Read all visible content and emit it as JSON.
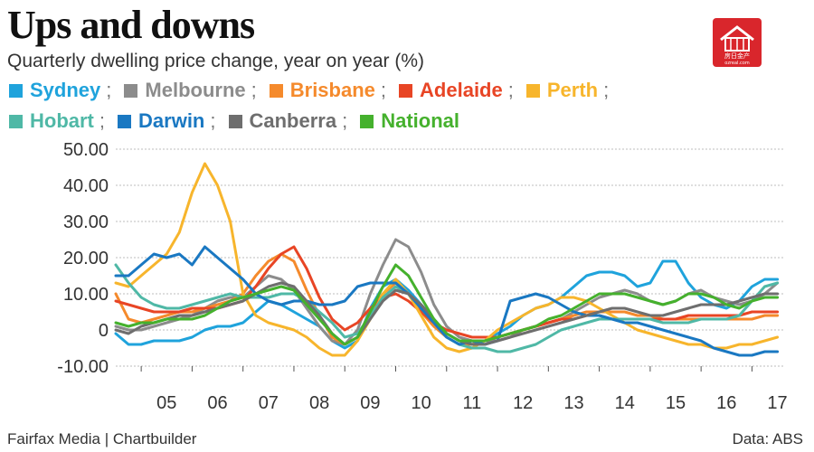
{
  "title": "Ups and downs",
  "subtitle": "Quarterly dwelling price change, year on year (%)",
  "footer": {
    "source": "Fairfax Media | Chartbuilder",
    "data": "Data: ABS"
  },
  "logo": {
    "text": "房日金产",
    "url_text": "ozreal.com",
    "color": "#d9262c"
  },
  "chart_data": {
    "type": "line",
    "title": "Ups and downs",
    "subtitle": "Quarterly dwelling price change, year on year (%)",
    "xlabel": "",
    "ylabel": "",
    "ylim": [
      -10,
      50
    ],
    "yticks": [
      "50.00",
      "40.00",
      "30.00",
      "20.00",
      "10.00",
      "0",
      "-10.00"
    ],
    "ytick_values": [
      50,
      40,
      30,
      20,
      10,
      0,
      -10
    ],
    "xticks": [
      "05",
      "06",
      "07",
      "08",
      "09",
      "10",
      "11",
      "12",
      "13",
      "14",
      "15",
      "16",
      "17"
    ],
    "xlim": [
      2004.5,
      2017.65
    ],
    "grid": true,
    "legend_position": "top",
    "series": [
      {
        "name": "Sydney",
        "color": "#1fa3dc",
        "x": [
          2004.5,
          2004.75,
          2005.0,
          2005.25,
          2005.5,
          2005.75,
          2006.0,
          2006.25,
          2006.5,
          2006.75,
          2007.0,
          2007.25,
          2007.5,
          2007.75,
          2008.0,
          2008.25,
          2008.5,
          2008.75,
          2009.0,
          2009.25,
          2009.5,
          2009.75,
          2010.0,
          2010.25,
          2010.5,
          2010.75,
          2011.0,
          2011.25,
          2011.5,
          2011.75,
          2012.0,
          2012.25,
          2012.5,
          2012.75,
          2013.0,
          2013.25,
          2013.5,
          2013.75,
          2014.0,
          2014.25,
          2014.5,
          2014.75,
          2015.0,
          2015.25,
          2015.5,
          2015.75,
          2016.0,
          2016.25,
          2016.5,
          2016.75,
          2017.0,
          2017.25,
          2017.5
        ],
        "y": [
          -1,
          -4,
          -4,
          -3,
          -3,
          -3,
          -2,
          0,
          1,
          1,
          2,
          5,
          8,
          7,
          5,
          3,
          1,
          -3,
          -5,
          -3,
          6,
          12,
          14,
          11,
          7,
          3,
          -1,
          -3,
          -4,
          -3,
          -1,
          1,
          4,
          6,
          7,
          9,
          12,
          15,
          16,
          16,
          15,
          12,
          13,
          19,
          19,
          13,
          9,
          7,
          6,
          8,
          12,
          14,
          14
        ]
      },
      {
        "name": "Melbourne",
        "color": "#8c8c8c",
        "x": [
          2004.5,
          2004.75,
          2005.0,
          2005.25,
          2005.5,
          2005.75,
          2006.0,
          2006.25,
          2006.5,
          2006.75,
          2007.0,
          2007.25,
          2007.5,
          2007.75,
          2008.0,
          2008.25,
          2008.5,
          2008.75,
          2009.0,
          2009.25,
          2009.5,
          2009.75,
          2010.0,
          2010.25,
          2010.5,
          2010.75,
          2011.0,
          2011.25,
          2011.5,
          2011.75,
          2012.0,
          2012.25,
          2012.5,
          2012.75,
          2013.0,
          2013.25,
          2013.5,
          2013.75,
          2014.0,
          2014.25,
          2014.5,
          2014.75,
          2015.0,
          2015.25,
          2015.5,
          2015.75,
          2016.0,
          2016.25,
          2016.5,
          2016.75,
          2017.0,
          2017.25,
          2017.5
        ],
        "y": [
          1,
          0,
          0,
          1,
          2,
          3,
          4,
          6,
          8,
          9,
          9,
          12,
          15,
          14,
          11,
          6,
          1,
          -3,
          -4,
          0,
          10,
          18,
          25,
          23,
          16,
          7,
          1,
          -2,
          -3,
          -3,
          -3,
          -2,
          0,
          1,
          2,
          3,
          5,
          7,
          9,
          10,
          11,
          10,
          8,
          7,
          8,
          10,
          11,
          9,
          8,
          7,
          8,
          10,
          13
        ]
      },
      {
        "name": "Brisbane",
        "color": "#f58a2c",
        "x": [
          2004.5,
          2004.75,
          2005.0,
          2005.25,
          2005.5,
          2005.75,
          2006.0,
          2006.25,
          2006.5,
          2006.75,
          2007.0,
          2007.25,
          2007.5,
          2007.75,
          2008.0,
          2008.25,
          2008.5,
          2008.75,
          2009.0,
          2009.25,
          2009.5,
          2009.75,
          2010.0,
          2010.25,
          2010.5,
          2010.75,
          2011.0,
          2011.25,
          2011.5,
          2011.75,
          2012.0,
          2012.25,
          2012.5,
          2012.75,
          2013.0,
          2013.25,
          2013.5,
          2013.75,
          2014.0,
          2014.25,
          2014.5,
          2014.75,
          2015.0,
          2015.25,
          2015.5,
          2015.75,
          2016.0,
          2016.25,
          2016.5,
          2016.75,
          2017.0,
          2017.25,
          2017.5
        ],
        "y": [
          10,
          3,
          2,
          3,
          4,
          5,
          5,
          6,
          7,
          8,
          10,
          15,
          19,
          21,
          19,
          11,
          4,
          -2,
          -4,
          -2,
          5,
          10,
          13,
          10,
          5,
          1,
          -2,
          -4,
          -4,
          -3,
          -2,
          -1,
          0,
          1,
          2,
          3,
          4,
          5,
          5,
          5,
          5,
          4,
          4,
          3,
          3,
          3,
          3,
          3,
          3,
          3,
          3,
          4,
          4
        ]
      },
      {
        "name": "Adelaide",
        "color": "#e84525",
        "x": [
          2004.5,
          2004.75,
          2005.0,
          2005.25,
          2005.5,
          2005.75,
          2006.0,
          2006.25,
          2006.5,
          2006.75,
          2007.0,
          2007.25,
          2007.5,
          2007.75,
          2008.0,
          2008.25,
          2008.5,
          2008.75,
          2009.0,
          2009.25,
          2009.5,
          2009.75,
          2010.0,
          2010.25,
          2010.5,
          2010.75,
          2011.0,
          2011.25,
          2011.5,
          2011.75,
          2012.0,
          2012.25,
          2012.5,
          2012.75,
          2013.0,
          2013.25,
          2013.5,
          2013.75,
          2014.0,
          2014.25,
          2014.5,
          2014.75,
          2015.0,
          2015.25,
          2015.5,
          2015.75,
          2016.0,
          2016.25,
          2016.5,
          2016.75,
          2017.0,
          2017.25,
          2017.5
        ],
        "y": [
          8,
          7,
          6,
          5,
          5,
          5,
          6,
          6,
          6,
          7,
          8,
          12,
          17,
          21,
          23,
          17,
          9,
          3,
          0,
          2,
          6,
          9,
          10,
          8,
          5,
          2,
          0,
          -1,
          -2,
          -2,
          -2,
          -1,
          0,
          1,
          2,
          3,
          3,
          4,
          4,
          3,
          3,
          3,
          3,
          3,
          3,
          4,
          4,
          4,
          4,
          4,
          5,
          5,
          5
        ]
      },
      {
        "name": "Perth",
        "color": "#f7b52c",
        "x": [
          2004.5,
          2004.75,
          2005.0,
          2005.25,
          2005.5,
          2005.75,
          2006.0,
          2006.25,
          2006.5,
          2006.75,
          2007.0,
          2007.25,
          2007.5,
          2007.75,
          2008.0,
          2008.25,
          2008.5,
          2008.75,
          2009.0,
          2009.25,
          2009.5,
          2009.75,
          2010.0,
          2010.25,
          2010.5,
          2010.75,
          2011.0,
          2011.25,
          2011.5,
          2011.75,
          2012.0,
          2012.25,
          2012.5,
          2012.75,
          2013.0,
          2013.25,
          2013.5,
          2013.75,
          2014.0,
          2014.25,
          2014.5,
          2014.75,
          2015.0,
          2015.25,
          2015.5,
          2015.75,
          2016.0,
          2016.25,
          2016.5,
          2016.75,
          2017.0,
          2017.25,
          2017.5
        ],
        "y": [
          13,
          12,
          15,
          18,
          21,
          27,
          38,
          46,
          40,
          30,
          10,
          4,
          2,
          1,
          0,
          -2,
          -5,
          -7,
          -7,
          -3,
          3,
          10,
          14,
          10,
          4,
          -2,
          -5,
          -6,
          -5,
          -3,
          0,
          2,
          4,
          6,
          7,
          9,
          9,
          8,
          6,
          4,
          2,
          0,
          -1,
          -2,
          -3,
          -4,
          -4,
          -5,
          -5,
          -4,
          -4,
          -3,
          -2
        ]
      },
      {
        "name": "Hobart",
        "color": "#4fb8a6",
        "x": [
          2004.5,
          2004.75,
          2005.0,
          2005.25,
          2005.5,
          2005.75,
          2006.0,
          2006.25,
          2006.5,
          2006.75,
          2007.0,
          2007.25,
          2007.5,
          2007.75,
          2008.0,
          2008.25,
          2008.5,
          2008.75,
          2009.0,
          2009.25,
          2009.5,
          2009.75,
          2010.0,
          2010.25,
          2010.5,
          2010.75,
          2011.0,
          2011.25,
          2011.5,
          2011.75,
          2012.0,
          2012.25,
          2012.5,
          2012.75,
          2013.0,
          2013.25,
          2013.5,
          2013.75,
          2014.0,
          2014.25,
          2014.5,
          2014.75,
          2015.0,
          2015.25,
          2015.5,
          2015.75,
          2016.0,
          2016.25,
          2016.5,
          2016.75,
          2017.0,
          2017.25,
          2017.5
        ],
        "y": [
          18,
          13,
          9,
          7,
          6,
          6,
          7,
          8,
          9,
          10,
          9,
          9,
          9,
          10,
          10,
          8,
          5,
          2,
          -2,
          -1,
          4,
          9,
          12,
          10,
          6,
          2,
          -2,
          -4,
          -5,
          -5,
          -6,
          -6,
          -5,
          -4,
          -2,
          0,
          1,
          2,
          3,
          3,
          3,
          3,
          3,
          2,
          2,
          2,
          3,
          3,
          3,
          4,
          8,
          12,
          13
        ]
      },
      {
        "name": "Darwin",
        "color": "#1a78c2",
        "x": [
          2004.5,
          2004.75,
          2005.0,
          2005.25,
          2005.5,
          2005.75,
          2006.0,
          2006.25,
          2006.5,
          2006.75,
          2007.0,
          2007.25,
          2007.5,
          2007.75,
          2008.0,
          2008.25,
          2008.5,
          2008.75,
          2009.0,
          2009.25,
          2009.5,
          2009.75,
          2010.0,
          2010.25,
          2010.5,
          2010.75,
          2011.0,
          2011.25,
          2011.5,
          2011.75,
          2012.0,
          2012.25,
          2012.5,
          2012.75,
          2013.0,
          2013.25,
          2013.5,
          2013.75,
          2014.0,
          2014.25,
          2014.5,
          2014.75,
          2015.0,
          2015.25,
          2015.5,
          2015.75,
          2016.0,
          2016.25,
          2016.5,
          2016.75,
          2017.0,
          2017.25,
          2017.5
        ],
        "y": [
          15,
          15,
          18,
          21,
          20,
          21,
          18,
          23,
          20,
          17,
          14,
          10,
          8,
          7,
          8,
          8,
          7,
          7,
          8,
          12,
          13,
          13,
          13,
          10,
          6,
          2,
          -2,
          -4,
          -3,
          -4,
          -3,
          8,
          9,
          10,
          9,
          7,
          5,
          4,
          4,
          3,
          2,
          2,
          1,
          0,
          -1,
          -2,
          -3,
          -5,
          -6,
          -7,
          -7,
          -6,
          -6
        ]
      },
      {
        "name": "Canberra",
        "color": "#6e6e6e",
        "x": [
          2004.5,
          2004.75,
          2005.0,
          2005.25,
          2005.5,
          2005.75,
          2006.0,
          2006.25,
          2006.5,
          2006.75,
          2007.0,
          2007.25,
          2007.5,
          2007.75,
          2008.0,
          2008.25,
          2008.5,
          2008.75,
          2009.0,
          2009.25,
          2009.5,
          2009.75,
          2010.0,
          2010.25,
          2010.5,
          2010.75,
          2011.0,
          2011.25,
          2011.5,
          2011.75,
          2012.0,
          2012.25,
          2012.5,
          2012.75,
          2013.0,
          2013.25,
          2013.5,
          2013.75,
          2014.0,
          2014.25,
          2014.5,
          2014.75,
          2015.0,
          2015.25,
          2015.5,
          2015.75,
          2016.0,
          2016.25,
          2016.5,
          2016.75,
          2017.0,
          2017.25,
          2017.5
        ],
        "y": [
          0,
          -1,
          1,
          2,
          3,
          4,
          4,
          5,
          6,
          7,
          8,
          10,
          12,
          13,
          12,
          8,
          4,
          -1,
          -4,
          -2,
          3,
          8,
          11,
          10,
          7,
          3,
          -1,
          -3,
          -4,
          -4,
          -3,
          -2,
          -1,
          0,
          1,
          2,
          3,
          4,
          5,
          6,
          6,
          5,
          4,
          4,
          5,
          6,
          7,
          7,
          7,
          8,
          9,
          10,
          10
        ]
      },
      {
        "name": "National",
        "color": "#45b12d",
        "x": [
          2004.5,
          2004.75,
          2005.0,
          2005.25,
          2005.5,
          2005.75,
          2006.0,
          2006.25,
          2006.5,
          2006.75,
          2007.0,
          2007.25,
          2007.5,
          2007.75,
          2008.0,
          2008.25,
          2008.5,
          2008.75,
          2009.0,
          2009.25,
          2009.5,
          2009.75,
          2010.0,
          2010.25,
          2010.5,
          2010.75,
          2011.0,
          2011.25,
          2011.5,
          2011.75,
          2012.0,
          2012.25,
          2012.5,
          2012.75,
          2013.0,
          2013.25,
          2013.5,
          2013.75,
          2014.0,
          2014.25,
          2014.5,
          2014.75,
          2015.0,
          2015.25,
          2015.5,
          2015.75,
          2016.0,
          2016.25,
          2016.5,
          2016.75,
          2017.0,
          2017.25,
          2017.5
        ],
        "y": [
          2,
          1,
          2,
          2,
          3,
          3,
          3,
          4,
          6,
          8,
          9,
          10,
          11,
          12,
          11,
          7,
          3,
          -1,
          -4,
          -2,
          5,
          12,
          18,
          15,
          9,
          3,
          -1,
          -3,
          -3,
          -3,
          -2,
          -1,
          0,
          1,
          3,
          4,
          6,
          8,
          10,
          10,
          10,
          9,
          8,
          7,
          8,
          10,
          10,
          9,
          7,
          6,
          8,
          9,
          9
        ]
      }
    ]
  }
}
